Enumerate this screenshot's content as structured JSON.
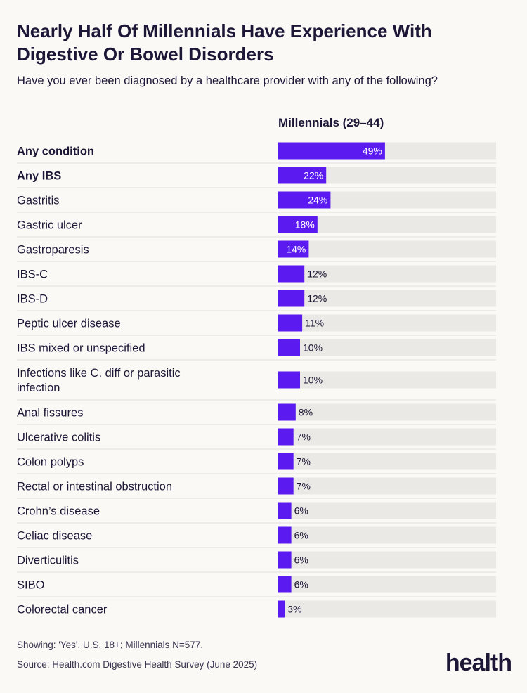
{
  "title": "Nearly Half Of Millennials Have Experience With Digestive Or Bowel Disorders",
  "subtitle": "Have you ever been diagnosed by a healthcare provider with any of the following?",
  "footnote": "Showing: 'Yes'. U.S. 18+; Millennials N=577.",
  "source": "Source: Health.com Digestive Health Survey (June 2025)",
  "logo_text": "health",
  "colors": {
    "bar": "#5a1af0",
    "track": "#ebe9e5",
    "divider": "#e2e0dc",
    "label_inside": "#ffffff",
    "label_outside": "#1c1736"
  },
  "chart_data": {
    "type": "bar",
    "orientation": "horizontal",
    "series": [
      {
        "name": "Millennials (29–44)",
        "values": [
          49,
          22,
          24,
          18,
          14,
          12,
          12,
          11,
          10,
          10,
          8,
          7,
          7,
          7,
          6,
          6,
          6,
          6,
          3
        ]
      }
    ],
    "categories": [
      "Any condition",
      "Any IBS",
      "Gastritis",
      "Gastric ulcer",
      "Gastroparesis",
      "IBS-C",
      "IBS-D",
      "Peptic ulcer disease",
      "IBS mixed or unspecified",
      "Infections like C. diff or parasitic infection",
      "Anal fissures",
      "Ulcerative colitis",
      "Colon polyps",
      "Rectal or intestinal obstruction",
      "Crohn’s disease",
      "Celiac disease",
      "Diverticulitis",
      "SIBO",
      "Colorectal cancer"
    ],
    "bold_categories": [
      "Any condition",
      "Any IBS"
    ],
    "value_labels": [
      "49%",
      "22%",
      "24%",
      "18%",
      "14%",
      "12%",
      "12%",
      "11%",
      "10%",
      "10%",
      "8%",
      "7%",
      "7%",
      "7%",
      "6%",
      "6%",
      "6%",
      "6%",
      "3%"
    ],
    "xlim": [
      0,
      100
    ],
    "grid": false,
    "legend": "none"
  }
}
